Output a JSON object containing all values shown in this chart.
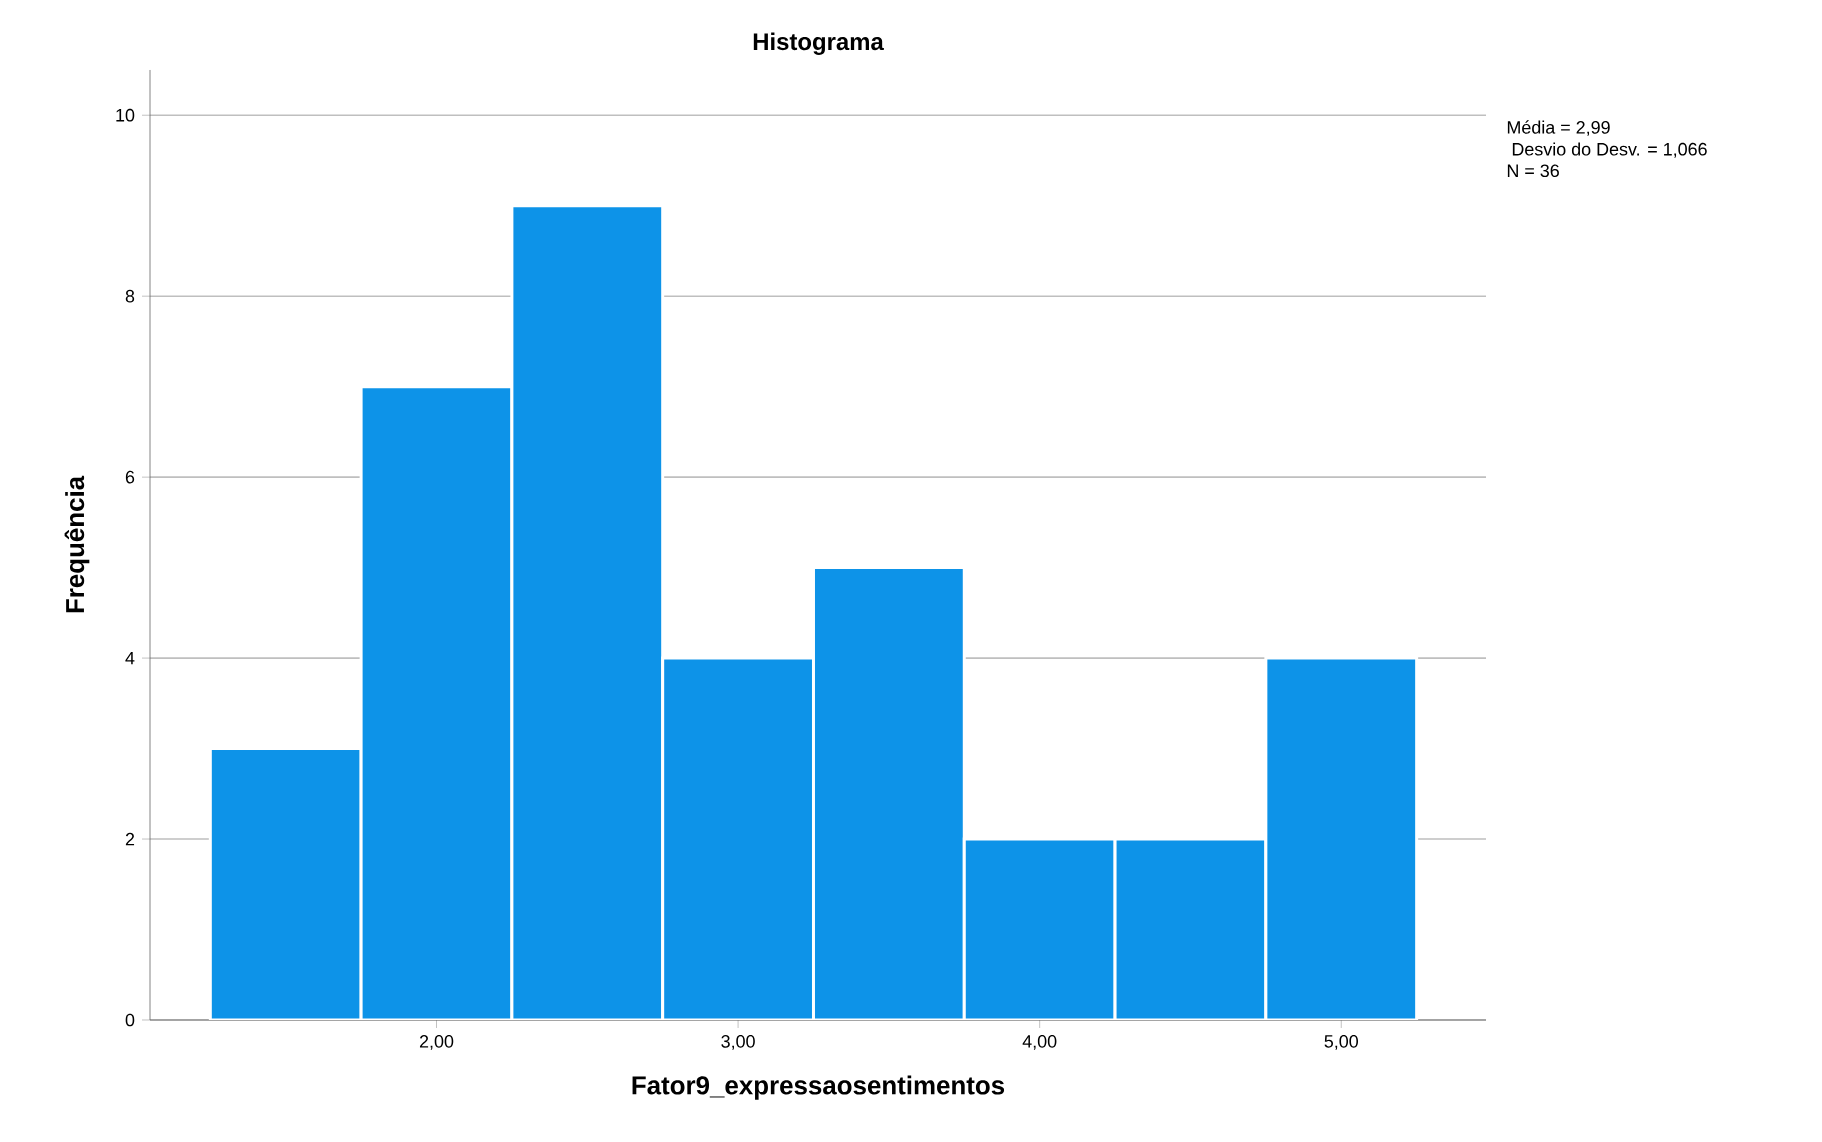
{
  "chart_data": {
    "type": "histogram",
    "title": "Histograma",
    "xlabel": "Fator9_expressaosentimentos",
    "ylabel": "Frequência",
    "bins": [
      1.25,
      1.75,
      2.25,
      2.75,
      3.25,
      3.75,
      4.25,
      4.75,
      5.25
    ],
    "values": [
      3,
      7,
      9,
      4,
      5,
      2,
      2,
      4
    ],
    "color": "#0d93e8",
    "xlim": [
      1.05,
      5.48
    ],
    "ylim": [
      0,
      10.5
    ],
    "xticks": [
      {
        "value": 2,
        "label": "2,00"
      },
      {
        "value": 3,
        "label": "3,00"
      },
      {
        "value": 4,
        "label": "4,00"
      },
      {
        "value": 5,
        "label": "5,00"
      }
    ],
    "yticks": [
      0,
      2,
      4,
      6,
      8,
      10
    ],
    "grid": "y",
    "annotations": [
      "Média = 2,99",
      " Desvio do Desv. = 1,066",
      "N = 36"
    ]
  }
}
